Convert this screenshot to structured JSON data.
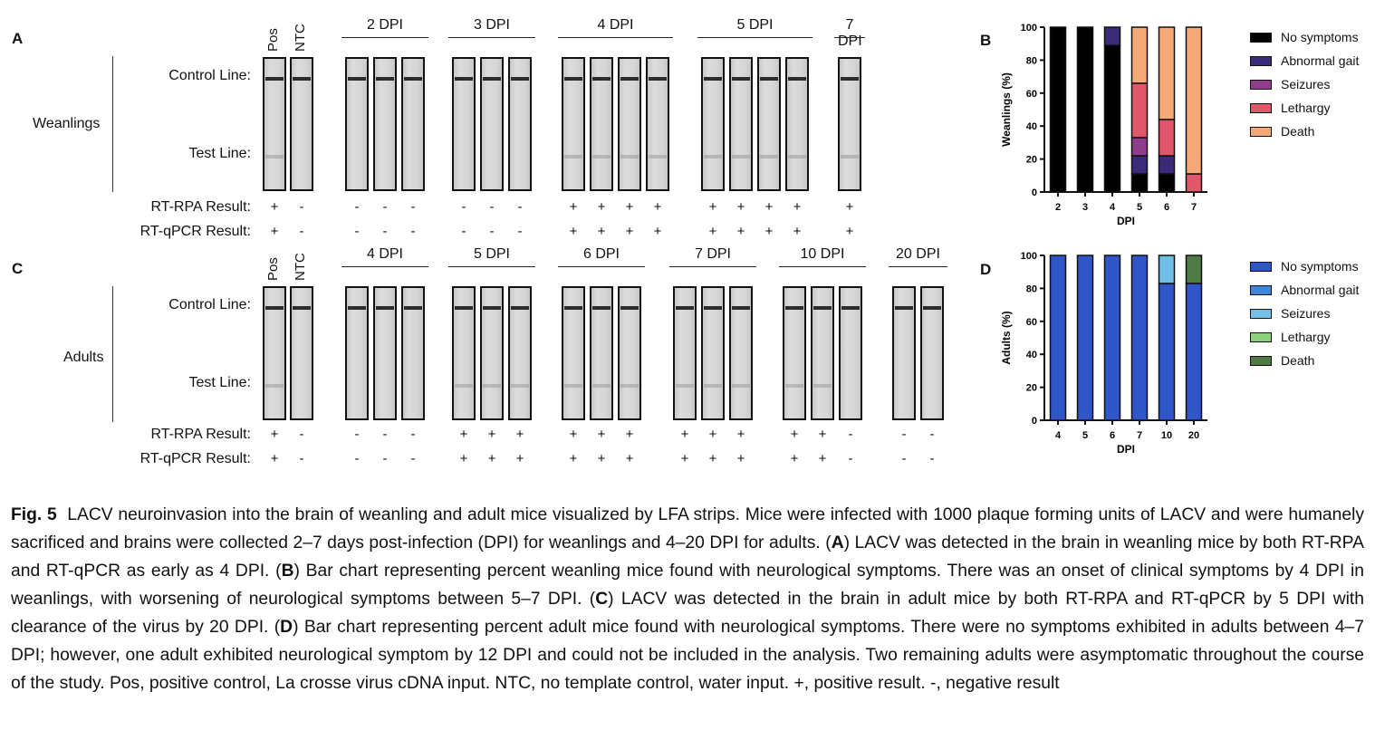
{
  "panel_a": {
    "letter": "A",
    "group_label": "Weanlings",
    "control_line": "Control Line:",
    "test_line": "Test Line:",
    "controls": [
      "Pos",
      "NTC"
    ],
    "dpi_groups": [
      {
        "label": "2 DPI",
        "strips": 3
      },
      {
        "label": "3 DPI",
        "strips": 3
      },
      {
        "label": "4 DPI",
        "strips": 4
      },
      {
        "label": "5 DPI",
        "strips": 4
      },
      {
        "label": "7 DPI",
        "strips": 1
      }
    ],
    "rt_rpa_label": "RT-RPA Result:",
    "rt_qpcr_label": "RT-qPCR Result:",
    "rt_rpa": [
      "+",
      "-",
      "-",
      "-",
      "-",
      "-",
      "-",
      "-",
      "+",
      "+",
      "+",
      "+",
      "+",
      "+",
      "+",
      "+",
      "+"
    ],
    "rt_qpcr": [
      "+",
      "-",
      "-",
      "-",
      "-",
      "-",
      "-",
      "-",
      "+",
      "+",
      "+",
      "+",
      "+",
      "+",
      "+",
      "+",
      "+"
    ]
  },
  "panel_c": {
    "letter": "C",
    "group_label": "Adults",
    "control_line": "Control Line:",
    "test_line": "Test Line:",
    "controls": [
      "Pos",
      "NTC"
    ],
    "dpi_groups": [
      {
        "label": "4 DPI",
        "strips": 3
      },
      {
        "label": "5 DPI",
        "strips": 3
      },
      {
        "label": "6 DPI",
        "strips": 3
      },
      {
        "label": "7 DPI",
        "strips": 3
      },
      {
        "label": "10 DPI",
        "strips": 3
      },
      {
        "label": "20 DPI",
        "strips": 2
      }
    ],
    "rt_rpa_label": "RT-RPA Result:",
    "rt_qpcr_label": "RT-qPCR Result:",
    "rt_rpa": [
      "+",
      "-",
      "-",
      "-",
      "-",
      "+",
      "+",
      "+",
      "+",
      "+",
      "+",
      "+",
      "+",
      "+",
      "+",
      "+",
      "-",
      "-",
      "-"
    ],
    "rt_qpcr": [
      "+",
      "-",
      "-",
      "-",
      "-",
      "+",
      "+",
      "+",
      "+",
      "+",
      "+",
      "+",
      "+",
      "+",
      "+",
      "+",
      "-",
      "-",
      "-"
    ]
  },
  "chart_data": [
    {
      "panel": "B",
      "type": "bar",
      "stacked": true,
      "xlabel": "DPI",
      "ylabel": "Weanlings (%)",
      "ylim": [
        0,
        100
      ],
      "yticks": [
        0,
        20,
        40,
        60,
        80,
        100
      ],
      "categories": [
        "2",
        "3",
        "4",
        "5",
        "6",
        "7"
      ],
      "series": [
        {
          "name": "No symptoms",
          "color": "#000000",
          "values": [
            100,
            100,
            89,
            11,
            11,
            0
          ]
        },
        {
          "name": "Abnormal gait",
          "color": "#3a2a78",
          "values": [
            0,
            0,
            11,
            11,
            11,
            0
          ]
        },
        {
          "name": "Seizures",
          "color": "#8e3d8c",
          "values": [
            0,
            0,
            0,
            11,
            0,
            0
          ]
        },
        {
          "name": "Lethargy",
          "color": "#e0566a",
          "values": [
            0,
            0,
            0,
            33,
            22,
            11
          ]
        },
        {
          "name": "Death",
          "color": "#f5a878",
          "values": [
            0,
            0,
            0,
            34,
            56,
            89
          ]
        }
      ],
      "legend": "right"
    },
    {
      "panel": "D",
      "type": "bar",
      "stacked": true,
      "xlabel": "DPI",
      "ylabel": "Adults (%)",
      "ylim": [
        0,
        100
      ],
      "yticks": [
        0,
        20,
        40,
        60,
        80,
        100
      ],
      "categories": [
        "4",
        "5",
        "6",
        "7",
        "10",
        "20"
      ],
      "series": [
        {
          "name": "No symptoms",
          "color": "#2f55c8",
          "values": [
            100,
            100,
            100,
            100,
            83,
            83
          ]
        },
        {
          "name": "Abnormal gait",
          "color": "#3d86d8",
          "values": [
            0,
            0,
            0,
            0,
            0,
            0
          ]
        },
        {
          "name": "Seizures",
          "color": "#72c0e8",
          "values": [
            0,
            0,
            0,
            0,
            17,
            0
          ]
        },
        {
          "name": "Lethargy",
          "color": "#8fcf7e",
          "values": [
            0,
            0,
            0,
            0,
            0,
            0
          ]
        },
        {
          "name": "Death",
          "color": "#4f7a45",
          "values": [
            0,
            0,
            0,
            0,
            0,
            17
          ]
        }
      ],
      "legend": "right"
    }
  ],
  "caption": {
    "label": "Fig. 5",
    "text": "LACV neuroinvasion into the brain of weanling and adult mice visualized by LFA strips. Mice were infected with 1000 plaque forming units of LACV and were humanely sacrificed and brains were collected 2–7 days post-infection (DPI) for weanlings and 4–20 DPI for adults. (A) LACV was detected in the brain in weanling mice by both RT-RPA and RT-qPCR as early as 4 DPI. (B) Bar chart representing percent weanling mice found with neurological symptoms. There was an onset of clinical symptoms by 4 DPI in weanlings, with worsening of neurological symptoms between 5–7 DPI. (C) LACV was detected in the brain in adult mice by both RT-RPA and RT-qPCR by 5 DPI with clearance of the virus by 20 DPI. (D) Bar chart representing percent adult mice found with neurological symptoms. There were no symptoms exhibited in adults between 4–7 DPI; however, one adult exhibited neurological symptom by 12 DPI and could not be included in the analysis. Two remaining adults were asymptomatic throughout the course of the study. Pos, positive control, La crosse virus cDNA input. NTC, no template control, water input. +, positive result. -, negative result"
  }
}
